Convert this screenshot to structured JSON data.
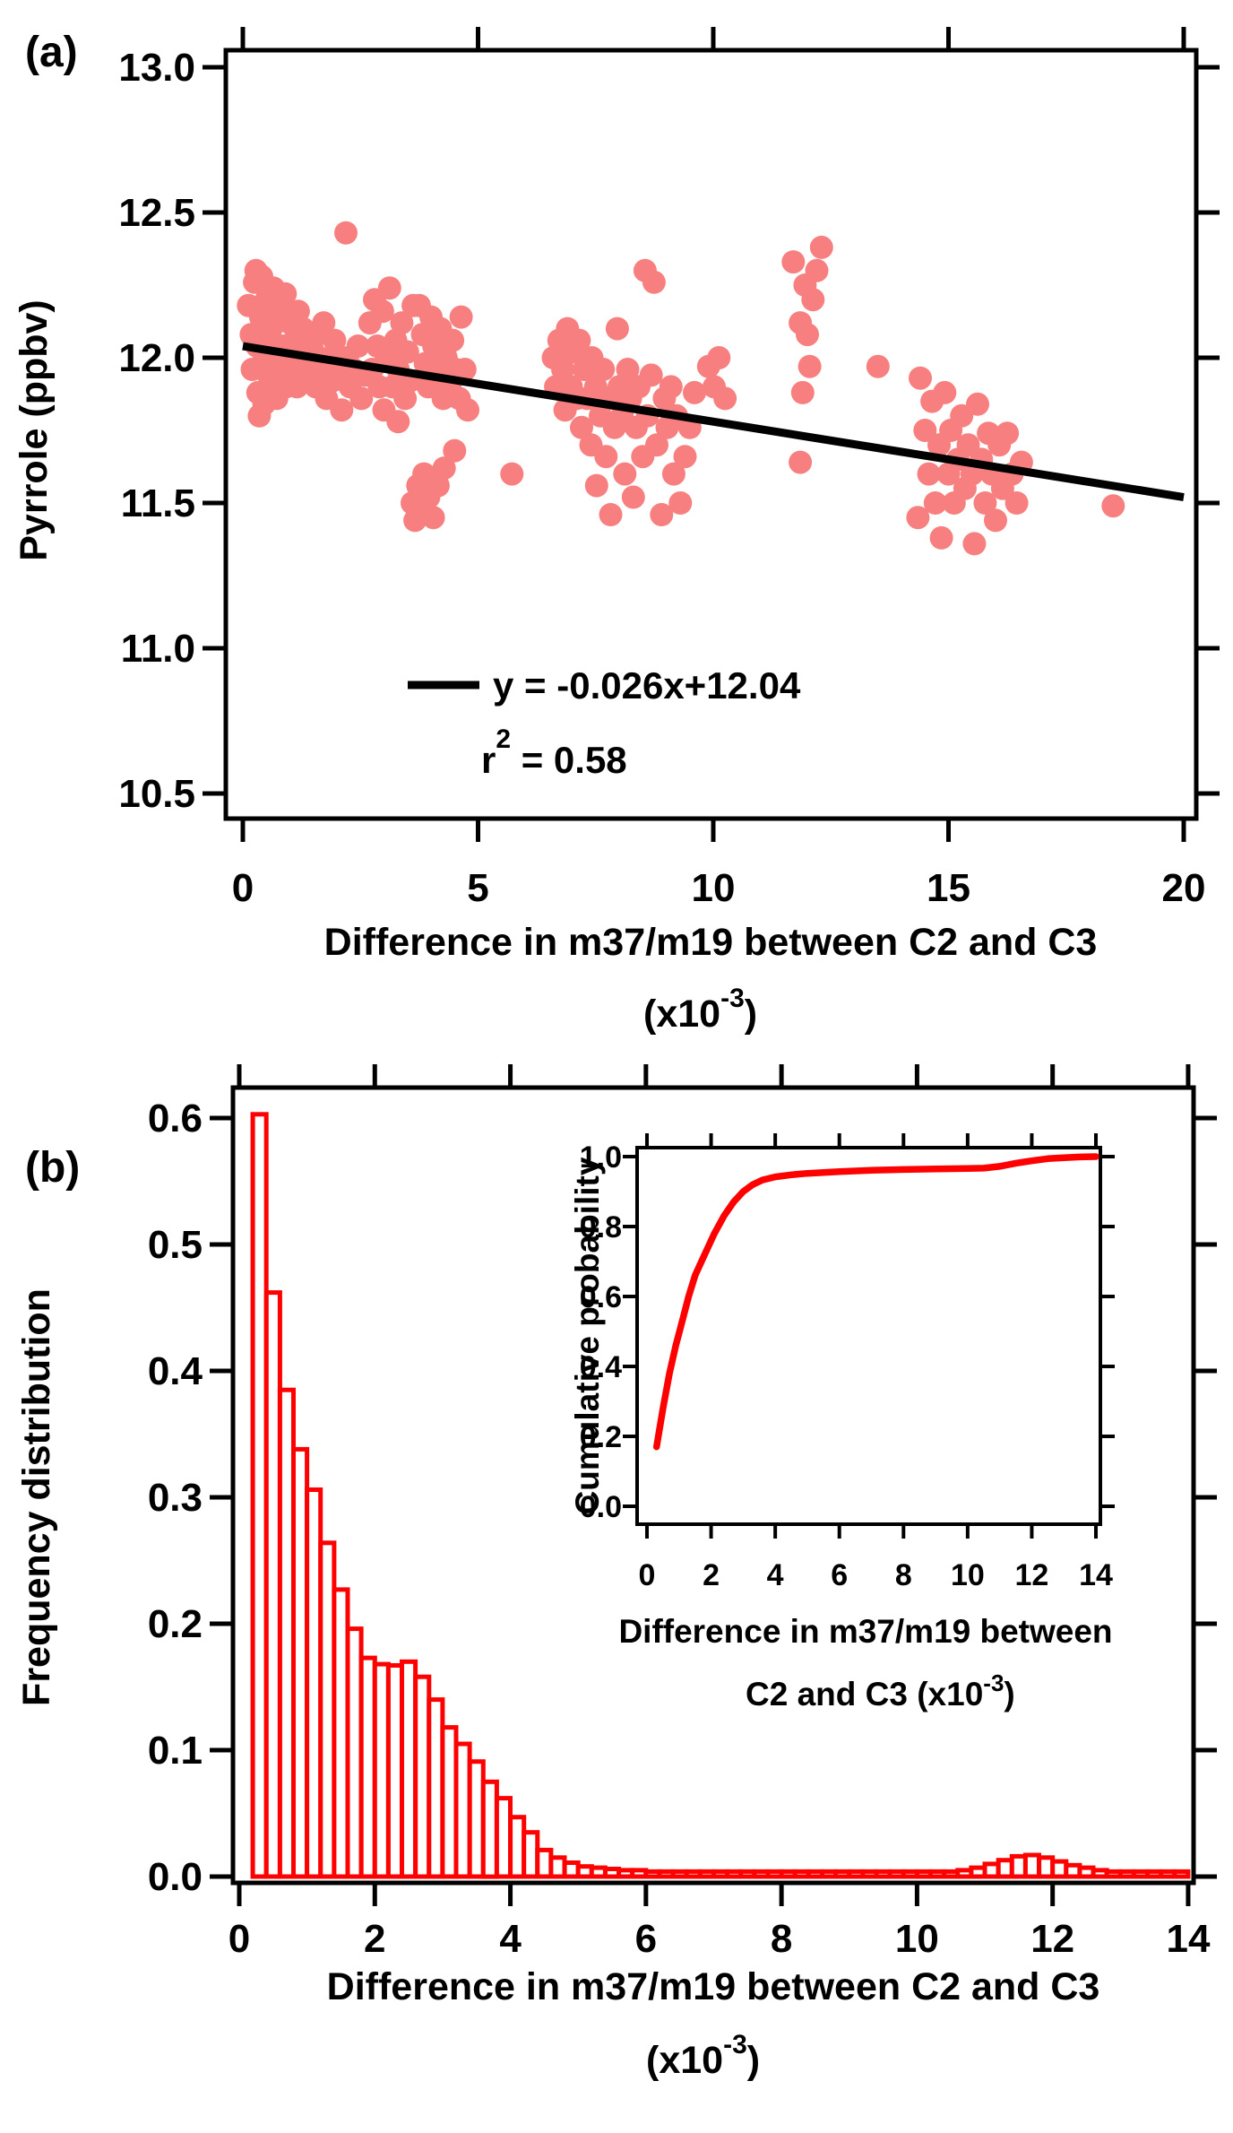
{
  "panel_a": {
    "label": "(a)"
  },
  "panel_b": {
    "label": "(b)"
  },
  "colors": {
    "scatter": "#F87F7F",
    "histogram": "#FF0000",
    "fit_line": "#000000",
    "axis": "#000000"
  },
  "chart_data": [
    {
      "panel": "a",
      "type": "scatter",
      "ylabel": "Pyrrole (ppbv)",
      "xlabel_line1": "Difference in m37/m19 between C2 and C3",
      "xlabel_line2_parts": [
        "(x10",
        "-3",
        ")"
      ],
      "xlim": [
        0,
        20
      ],
      "ylim": [
        10.5,
        13.0
      ],
      "xticks": [
        0,
        5,
        10,
        15,
        20
      ],
      "yticks": [
        "10.5",
        "11.0",
        "11.5",
        "12.0",
        "12.5",
        "13.0"
      ],
      "grid": false,
      "marker_color": "#F87F7F",
      "fit": {
        "slope": -0.026,
        "intercept": 12.04,
        "x_start": 0,
        "x_end": 20,
        "color": "#000000"
      },
      "legend": {
        "equation": "y = -0.026x+12.04",
        "r2_base": "r",
        "r2_sup": "2",
        "r2_rest": " = 0.58",
        "position": "bottom-center"
      },
      "points": [
        [
          0.12,
          12.18
        ],
        [
          0.18,
          12.08
        ],
        [
          0.2,
          11.96
        ],
        [
          0.25,
          12.26
        ],
        [
          0.28,
          12.3
        ],
        [
          0.3,
          12.04
        ],
        [
          0.32,
          11.88
        ],
        [
          0.38,
          12.14
        ],
        [
          0.4,
          12.28
        ],
        [
          0.42,
          11.98
        ],
        [
          0.45,
          11.84
        ],
        [
          0.5,
          12.2
        ],
        [
          0.52,
          12.06
        ],
        [
          0.55,
          11.94
        ],
        [
          0.6,
          12.1
        ],
        [
          0.62,
          11.88
        ],
        [
          0.65,
          12.24
        ],
        [
          0.7,
          12.0
        ],
        [
          0.72,
          11.86
        ],
        [
          0.78,
          12.16
        ],
        [
          0.8,
          11.96
        ],
        [
          0.85,
          12.04
        ],
        [
          0.9,
          12.22
        ],
        [
          0.92,
          11.9
        ],
        [
          0.97,
          12.0
        ],
        [
          1.0,
          12.12
        ],
        [
          1.05,
          11.94
        ],
        [
          1.1,
          12.06
        ],
        [
          1.15,
          11.9
        ],
        [
          1.18,
          12.16
        ],
        [
          1.22,
          12.0
        ],
        [
          1.28,
          12.1
        ],
        [
          1.3,
          11.94
        ],
        [
          1.35,
          12.04
        ],
        [
          1.4,
          11.96
        ],
        [
          0.35,
          11.8
        ],
        [
          1.5,
          12.02
        ],
        [
          1.55,
          11.9
        ],
        [
          1.6,
          12.08
        ],
        [
          1.68,
          11.96
        ],
        [
          1.72,
          12.12
        ],
        [
          1.78,
          11.86
        ],
        [
          1.85,
          12.0
        ],
        [
          1.9,
          11.92
        ],
        [
          1.95,
          12.06
        ],
        [
          2.02,
          11.96
        ],
        [
          2.1,
          11.82
        ],
        [
          2.19,
          12.43
        ],
        [
          2.22,
          12.0
        ],
        [
          2.28,
          11.9
        ],
        [
          2.35,
          11.96
        ],
        [
          2.45,
          12.04
        ],
        [
          2.52,
          11.86
        ],
        [
          2.6,
          11.94
        ],
        [
          2.7,
          12.12
        ],
        [
          2.75,
          11.96
        ],
        [
          2.8,
          12.2
        ],
        [
          2.86,
          12.04
        ],
        [
          2.9,
          11.9
        ],
        [
          2.97,
          12.16
        ],
        [
          3.0,
          11.82
        ],
        [
          3.05,
          12.0
        ],
        [
          3.12,
          12.24
        ],
        [
          3.18,
          11.9
        ],
        [
          3.25,
          12.06
        ],
        [
          3.3,
          11.96
        ],
        [
          3.38,
          12.12
        ],
        [
          3.45,
          11.86
        ],
        [
          3.5,
          12.02
        ],
        [
          3.55,
          11.92
        ],
        [
          3.62,
          12.18
        ],
        [
          3.3,
          11.78
        ],
        [
          3.6,
          11.5
        ],
        [
          3.66,
          11.44
        ],
        [
          3.72,
          11.56
        ],
        [
          3.78,
          11.47
        ],
        [
          3.85,
          11.6
        ],
        [
          3.95,
          11.52
        ],
        [
          4.05,
          11.45
        ],
        [
          4.15,
          11.56
        ],
        [
          4.28,
          11.62
        ],
        [
          3.75,
          12.18
        ],
        [
          3.82,
          12.08
        ],
        [
          3.88,
          11.98
        ],
        [
          3.94,
          11.9
        ],
        [
          4.0,
          12.14
        ],
        [
          4.06,
          12.04
        ],
        [
          4.12,
          11.94
        ],
        [
          4.2,
          12.1
        ],
        [
          4.26,
          11.86
        ],
        [
          4.32,
          12.0
        ],
        [
          4.4,
          11.9
        ],
        [
          4.46,
          12.06
        ],
        [
          4.52,
          11.96
        ],
        [
          4.6,
          11.86
        ],
        [
          4.64,
          12.14
        ],
        [
          4.72,
          11.96
        ],
        [
          4.78,
          11.82
        ],
        [
          4.5,
          11.68
        ],
        [
          5.72,
          11.6
        ],
        [
          6.6,
          12.0
        ],
        [
          6.65,
          11.9
        ],
        [
          6.72,
          12.06
        ],
        [
          6.8,
          11.96
        ],
        [
          6.85,
          11.82
        ],
        [
          6.9,
          12.1
        ],
        [
          6.98,
          11.9
        ],
        [
          7.02,
          12.02
        ],
        [
          7.1,
          11.86
        ],
        [
          7.15,
          12.06
        ],
        [
          7.2,
          11.76
        ],
        [
          7.26,
          11.96
        ],
        [
          7.32,
          11.86
        ],
        [
          7.4,
          11.7
        ],
        [
          7.42,
          12.0
        ],
        [
          7.5,
          11.9
        ],
        [
          7.52,
          11.56
        ],
        [
          7.6,
          11.8
        ],
        [
          7.66,
          11.96
        ],
        [
          7.72,
          11.66
        ],
        [
          7.78,
          11.86
        ],
        [
          7.82,
          11.46
        ],
        [
          7.9,
          11.76
        ],
        [
          7.96,
          12.1
        ],
        [
          8.0,
          11.9
        ],
        [
          8.06,
          11.8
        ],
        [
          8.12,
          11.6
        ],
        [
          8.18,
          11.96
        ],
        [
          8.24,
          11.86
        ],
        [
          8.3,
          11.52
        ],
        [
          8.36,
          11.76
        ],
        [
          8.42,
          11.9
        ],
        [
          8.5,
          11.66
        ],
        [
          8.55,
          12.3
        ],
        [
          8.6,
          11.8
        ],
        [
          8.68,
          11.94
        ],
        [
          8.74,
          12.26
        ],
        [
          8.8,
          11.7
        ],
        [
          8.9,
          11.46
        ],
        [
          8.96,
          11.86
        ],
        [
          9.02,
          11.76
        ],
        [
          9.1,
          11.9
        ],
        [
          9.16,
          11.6
        ],
        [
          9.22,
          11.8
        ],
        [
          9.3,
          11.5
        ],
        [
          9.4,
          11.66
        ],
        [
          9.5,
          11.76
        ],
        [
          9.6,
          11.88
        ],
        [
          9.9,
          11.97
        ],
        [
          10.02,
          11.9
        ],
        [
          10.12,
          12.0
        ],
        [
          10.25,
          11.86
        ],
        [
          11.7,
          12.33
        ],
        [
          12.3,
          12.38
        ],
        [
          11.95,
          12.25
        ],
        [
          12.12,
          12.2
        ],
        [
          11.85,
          12.12
        ],
        [
          12.0,
          12.08
        ],
        [
          12.05,
          11.97
        ],
        [
          11.9,
          11.88
        ],
        [
          11.85,
          11.64
        ],
        [
          12.2,
          12.3
        ],
        [
          13.5,
          11.97
        ],
        [
          14.35,
          11.45
        ],
        [
          14.4,
          11.93
        ],
        [
          14.5,
          11.75
        ],
        [
          14.58,
          11.6
        ],
        [
          14.65,
          11.85
        ],
        [
          14.72,
          11.5
        ],
        [
          14.8,
          11.7
        ],
        [
          14.85,
          11.38
        ],
        [
          14.92,
          11.88
        ],
        [
          15.0,
          11.6
        ],
        [
          15.05,
          11.75
        ],
        [
          15.12,
          11.5
        ],
        [
          15.2,
          11.65
        ],
        [
          15.28,
          11.8
        ],
        [
          15.35,
          11.55
        ],
        [
          15.42,
          11.7
        ],
        [
          15.5,
          11.6
        ],
        [
          15.55,
          11.36
        ],
        [
          15.62,
          11.84
        ],
        [
          15.7,
          11.65
        ],
        [
          15.78,
          11.5
        ],
        [
          15.85,
          11.74
        ],
        [
          15.92,
          11.6
        ],
        [
          16.0,
          11.44
        ],
        [
          16.08,
          11.7
        ],
        [
          16.15,
          11.55
        ],
        [
          16.25,
          11.74
        ],
        [
          16.35,
          11.6
        ],
        [
          16.45,
          11.5
        ],
        [
          16.55,
          11.64
        ],
        [
          18.5,
          11.49
        ]
      ]
    },
    {
      "panel": "b",
      "type": "bar",
      "ylabel": "Frequency distribution",
      "xlabel_line1": "Difference in m37/m19 between C2 and C3",
      "xlabel_line2_parts": [
        "(x10",
        "-3",
        ")"
      ],
      "xlim": [
        0,
        14
      ],
      "ylim": [
        0,
        0.6
      ],
      "xticks": [
        0,
        2,
        4,
        6,
        8,
        10,
        12,
        14
      ],
      "yticks": [
        "0.0",
        "0.1",
        "0.2",
        "0.3",
        "0.4",
        "0.5",
        "0.6"
      ],
      "grid": false,
      "bar_color": "#FF0000",
      "bar_fill": "#FFFFFF",
      "bin_start": 0.2,
      "bin_width": 0.2,
      "values": [
        0.603,
        0.462,
        0.385,
        0.338,
        0.306,
        0.264,
        0.227,
        0.196,
        0.173,
        0.168,
        0.167,
        0.17,
        0.158,
        0.14,
        0.118,
        0.105,
        0.091,
        0.075,
        0.062,
        0.047,
        0.035,
        0.021,
        0.015,
        0.011,
        0.008,
        0.007,
        0.006,
        0.005,
        0.005,
        0.004,
        0.004,
        0.004,
        0.004,
        0.004,
        0.004,
        0.004,
        0.004,
        0.004,
        0.004,
        0.004,
        0.004,
        0.004,
        0.004,
        0.004,
        0.004,
        0.004,
        0.004,
        0.004,
        0.004,
        0.004,
        0.004,
        0.004,
        0.005,
        0.007,
        0.01,
        0.013,
        0.016,
        0.017,
        0.015,
        0.012,
        0.009,
        0.007,
        0.005,
        0.004,
        0.004,
        0.004,
        0.004,
        0.004,
        0.004
      ]
    },
    {
      "panel": "b-inset",
      "type": "line",
      "ylabel": "Cumulative probability",
      "xlabel_line1": "Difference in m37/m19 between",
      "xlabel_line2_parts": [
        "C2 and C3 (x10",
        "-3",
        ")"
      ],
      "xlim": [
        0,
        14
      ],
      "ylim": [
        0.0,
        1.0
      ],
      "xticks": [
        0,
        2,
        4,
        6,
        8,
        10,
        12,
        14
      ],
      "yticks": [
        "0.0",
        "0.2",
        "0.4",
        "0.6",
        "0.8",
        "1.0"
      ],
      "grid": false,
      "line_color": "#FF0000",
      "points": [
        [
          0.3,
          0.17
        ],
        [
          0.5,
          0.28
        ],
        [
          0.7,
          0.38
        ],
        [
          0.9,
          0.46
        ],
        [
          1.1,
          0.53
        ],
        [
          1.3,
          0.6
        ],
        [
          1.5,
          0.66
        ],
        [
          1.8,
          0.72
        ],
        [
          2.1,
          0.78
        ],
        [
          2.4,
          0.83
        ],
        [
          2.7,
          0.87
        ],
        [
          3.0,
          0.9
        ],
        [
          3.3,
          0.92
        ],
        [
          3.6,
          0.933
        ],
        [
          4.0,
          0.942
        ],
        [
          4.5,
          0.948
        ],
        [
          5.0,
          0.952
        ],
        [
          6.0,
          0.957
        ],
        [
          7.0,
          0.961
        ],
        [
          8.0,
          0.963
        ],
        [
          9.0,
          0.965
        ],
        [
          10.0,
          0.966
        ],
        [
          10.5,
          0.967
        ],
        [
          11.0,
          0.972
        ],
        [
          11.5,
          0.981
        ],
        [
          12.0,
          0.988
        ],
        [
          12.5,
          0.994
        ],
        [
          13.0,
          0.997
        ],
        [
          13.5,
          0.999
        ],
        [
          14.0,
          1.0
        ]
      ]
    }
  ]
}
